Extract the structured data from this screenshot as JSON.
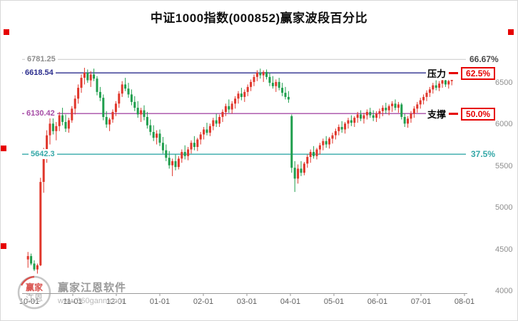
{
  "title": "中证1000指数(000852)赢家波段百分比",
  "colors": {
    "up": "#e0362b",
    "down": "#1f9e4d",
    "resistance_line": "#2b2d8e",
    "support_line": "#a64ca6",
    "level375_line": "#35a8a8",
    "level6667_line": "#c9c9c9",
    "accent_red": "#e60000",
    "axis_text": "#8e8e8e"
  },
  "levels": {
    "p6667": {
      "price_label": "6781.25",
      "pct_label": "66.67%",
      "value": 6781.25
    },
    "resistance": {
      "price_label": "6618.54",
      "pct_label": "62.5%",
      "name": "压力",
      "value": 6618.54
    },
    "support": {
      "price_label": "6130.42",
      "pct_label": "50.0%",
      "name": "支撑",
      "value": 6130.42
    },
    "p375": {
      "price_label": "5642.3",
      "pct_label": "37.5%",
      "value": 5642.3
    }
  },
  "x_axis": {
    "labels": [
      "10-01",
      "11-01",
      "12-01",
      "01-01",
      "02-01",
      "03-01",
      "04-01",
      "05-01",
      "06-01",
      "07-01",
      "08-01"
    ]
  },
  "y_axis": {
    "labels": [
      "6500",
      "6000",
      "5500",
      "5000",
      "4500",
      "4000"
    ],
    "values": [
      6500,
      6000,
      5500,
      5000,
      4500,
      4000
    ]
  },
  "watermark": {
    "name": "赢家江恩软件",
    "url": "www.360gann.com",
    "logo_top": "赢家",
    "logo_bottom": "江恩"
  },
  "chart_data": {
    "type": "candlestick",
    "title": "中证1000指数(000852)赢家波段百分比",
    "x_ticks": [
      "10-01",
      "11-01",
      "12-01",
      "01-01",
      "02-01",
      "03-01",
      "04-01",
      "05-01",
      "06-01",
      "07-01",
      "08-01"
    ],
    "y_ticks": [
      6500,
      6000,
      5500,
      5000,
      4500,
      4000
    ],
    "price_range": [
      3975,
      6843
    ],
    "candles_per_month": [
      14,
      14,
      14,
      14,
      14,
      14,
      14,
      14,
      14,
      10
    ],
    "levels": [
      {
        "id": "level-6667-line",
        "label": "66.67%",
        "price": 6781.25,
        "color": "#c9c9c9",
        "width": 1
      },
      {
        "id": "resistance-line",
        "label": "压力 62.5%",
        "price": 6618.54,
        "color": "#2b2d8e",
        "width": 1.4
      },
      {
        "id": "support-line",
        "label": "支撑 50.0%",
        "price": 6130.42,
        "color": "#a64ca6",
        "width": 1.4
      },
      {
        "id": "level-375-line",
        "label": "37.5%",
        "price": 5642.3,
        "color": "#35a8a8",
        "width": 1.4
      }
    ],
    "ohlc": [
      [
        4380,
        4470,
        4280,
        4420
      ],
      [
        4420,
        4450,
        4310,
        4330
      ],
      [
        4330,
        4370,
        4240,
        4260
      ],
      [
        4260,
        4330,
        4210,
        4310
      ],
      [
        4310,
        5360,
        4300,
        5310
      ],
      [
        5310,
        5720,
        5180,
        5650
      ],
      [
        5650,
        5930,
        5540,
        5870
      ],
      [
        5870,
        6080,
        5760,
        6010
      ],
      [
        6010,
        6160,
        5880,
        5920
      ],
      [
        5920,
        6030,
        5810,
        5980
      ],
      [
        5980,
        6150,
        5920,
        6110
      ],
      [
        6110,
        6200,
        5990,
        6030
      ],
      [
        6030,
        6120,
        5910,
        5950
      ],
      [
        5950,
        6080,
        5900,
        6050
      ],
      [
        6050,
        6220,
        6020,
        6190
      ],
      [
        6190,
        6350,
        6120,
        6310
      ],
      [
        6310,
        6480,
        6250,
        6440
      ],
      [
        6440,
        6600,
        6380,
        6560
      ],
      [
        6560,
        6680,
        6480,
        6620
      ],
      [
        6620,
        6660,
        6500,
        6530
      ],
      [
        6530,
        6640,
        6450,
        6600
      ],
      [
        6600,
        6670,
        6520,
        6550
      ],
      [
        6550,
        6580,
        6350,
        6390
      ],
      [
        6390,
        6450,
        6280,
        6320
      ],
      [
        6320,
        6360,
        6050,
        6090
      ],
      [
        6090,
        6160,
        5960,
        6000
      ],
      [
        6000,
        6080,
        5920,
        6060
      ],
      [
        6060,
        6180,
        6020,
        6150
      ],
      [
        6150,
        6280,
        6100,
        6250
      ],
      [
        6250,
        6400,
        6200,
        6370
      ],
      [
        6370,
        6520,
        6330,
        6480
      ],
      [
        6480,
        6560,
        6400,
        6430
      ],
      [
        6430,
        6500,
        6320,
        6360
      ],
      [
        6360,
        6420,
        6230,
        6270
      ],
      [
        6270,
        6340,
        6160,
        6200
      ],
      [
        6200,
        6280,
        6080,
        6120
      ],
      [
        6120,
        6200,
        6030,
        6170
      ],
      [
        6170,
        6230,
        6050,
        6090
      ],
      [
        6090,
        6150,
        5950,
        5990
      ],
      [
        5990,
        6060,
        5870,
        5910
      ],
      [
        5910,
        5990,
        5800,
        5840
      ],
      [
        5840,
        5930,
        5760,
        5890
      ],
      [
        5890,
        5940,
        5740,
        5780
      ],
      [
        5780,
        5850,
        5650,
        5690
      ],
      [
        5690,
        5760,
        5560,
        5600
      ],
      [
        5600,
        5680,
        5470,
        5510
      ],
      [
        5510,
        5590,
        5380,
        5560
      ],
      [
        5560,
        5640,
        5450,
        5490
      ],
      [
        5490,
        5620,
        5460,
        5590
      ],
      [
        5590,
        5700,
        5540,
        5670
      ],
      [
        5670,
        5750,
        5580,
        5620
      ],
      [
        5620,
        5730,
        5570,
        5700
      ],
      [
        5700,
        5810,
        5650,
        5780
      ],
      [
        5780,
        5860,
        5690,
        5730
      ],
      [
        5730,
        5840,
        5680,
        5820
      ],
      [
        5820,
        5910,
        5760,
        5880
      ],
      [
        5880,
        5970,
        5820,
        5940
      ],
      [
        5940,
        6020,
        5870,
        5900
      ],
      [
        5900,
        6010,
        5860,
        5980
      ],
      [
        5980,
        6080,
        5930,
        6050
      ],
      [
        6050,
        6130,
        5970,
        6010
      ],
      [
        6010,
        6120,
        5970,
        6090
      ],
      [
        6090,
        6180,
        6030,
        6150
      ],
      [
        6150,
        6250,
        6100,
        6220
      ],
      [
        6220,
        6300,
        6140,
        6180
      ],
      [
        6180,
        6280,
        6130,
        6250
      ],
      [
        6250,
        6340,
        6190,
        6310
      ],
      [
        6310,
        6400,
        6250,
        6370
      ],
      [
        6370,
        6440,
        6290,
        6330
      ],
      [
        6330,
        6420,
        6270,
        6390
      ],
      [
        6390,
        6480,
        6340,
        6450
      ],
      [
        6450,
        6540,
        6400,
        6510
      ],
      [
        6510,
        6600,
        6460,
        6570
      ],
      [
        6570,
        6650,
        6520,
        6620
      ],
      [
        6620,
        6670,
        6550,
        6590
      ],
      [
        6590,
        6650,
        6510,
        6630
      ],
      [
        6630,
        6660,
        6540,
        6570
      ],
      [
        6570,
        6620,
        6460,
        6500
      ],
      [
        6500,
        6580,
        6430,
        6460
      ],
      [
        6460,
        6540,
        6390,
        6510
      ],
      [
        6510,
        6560,
        6410,
        6440
      ],
      [
        6440,
        6500,
        6340,
        6380
      ],
      [
        6380,
        6450,
        6300,
        6330
      ],
      [
        6330,
        6400,
        6260,
        6300
      ],
      [
        6100,
        6120,
        5420,
        5480
      ],
      [
        5480,
        5560,
        5190,
        5350
      ],
      [
        5350,
        5520,
        5290,
        5470
      ],
      [
        5470,
        5560,
        5380,
        5420
      ],
      [
        5420,
        5550,
        5390,
        5530
      ],
      [
        5530,
        5640,
        5480,
        5610
      ],
      [
        5610,
        5700,
        5540,
        5670
      ],
      [
        5670,
        5740,
        5590,
        5620
      ],
      [
        5620,
        5720,
        5580,
        5700
      ],
      [
        5700,
        5780,
        5640,
        5750
      ],
      [
        5750,
        5830,
        5690,
        5800
      ],
      [
        5800,
        5860,
        5720,
        5760
      ],
      [
        5760,
        5850,
        5710,
        5830
      ],
      [
        5830,
        5900,
        5770,
        5870
      ],
      [
        5870,
        5950,
        5820,
        5920
      ],
      [
        5920,
        6000,
        5870,
        5970
      ],
      [
        5970,
        6040,
        5900,
        5940
      ],
      [
        5940,
        6030,
        5890,
        6010
      ],
      [
        6010,
        6080,
        5950,
        6050
      ],
      [
        6050,
        6110,
        5980,
        6020
      ],
      [
        6020,
        6100,
        5970,
        6080
      ],
      [
        6080,
        6150,
        6020,
        6120
      ],
      [
        6120,
        6170,
        6040,
        6070
      ],
      [
        6070,
        6140,
        6010,
        6110
      ],
      [
        6110,
        6180,
        6060,
        6150
      ],
      [
        6150,
        6200,
        6080,
        6110
      ],
      [
        6110,
        6170,
        6040,
        6080
      ],
      [
        6080,
        6160,
        6030,
        6130
      ],
      [
        6130,
        6190,
        6070,
        6160
      ],
      [
        6160,
        6230,
        6100,
        6200
      ],
      [
        6200,
        6260,
        6130,
        6170
      ],
      [
        6170,
        6240,
        6110,
        6220
      ],
      [
        6220,
        6280,
        6150,
        6250
      ],
      [
        6250,
        6300,
        6170,
        6200
      ],
      [
        6200,
        6270,
        6140,
        6240
      ],
      [
        6240,
        6260,
        6060,
        6090
      ],
      [
        6090,
        6130,
        5970,
        6010
      ],
      [
        6010,
        6100,
        5960,
        6070
      ],
      [
        6070,
        6160,
        6020,
        6130
      ],
      [
        6130,
        6220,
        6080,
        6190
      ],
      [
        6190,
        6270,
        6140,
        6240
      ],
      [
        6240,
        6320,
        6190,
        6290
      ],
      [
        6290,
        6360,
        6240,
        6330
      ],
      [
        6330,
        6410,
        6280,
        6380
      ],
      [
        6380,
        6450,
        6330,
        6420
      ],
      [
        6420,
        6500,
        6370,
        6470
      ],
      [
        6470,
        6530,
        6410,
        6440
      ],
      [
        6440,
        6520,
        6400,
        6490
      ],
      [
        6490,
        6560,
        6440,
        6530
      ],
      [
        6530,
        6570,
        6450,
        6480
      ],
      [
        6480,
        6550,
        6430,
        6520
      ],
      [
        6520,
        6580,
        6470,
        6550
      ]
    ]
  }
}
